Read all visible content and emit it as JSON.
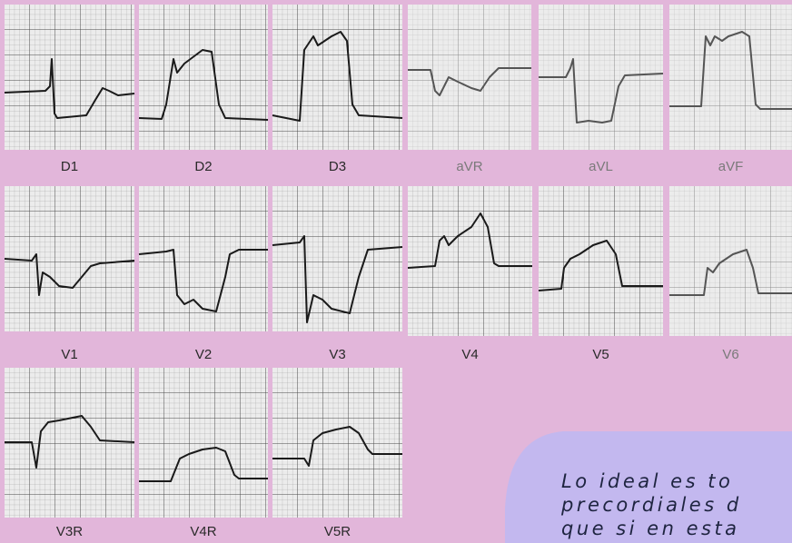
{
  "leads": [
    "D1",
    "D2",
    "D3",
    "aVR",
    "aVL",
    "aVF",
    "V1",
    "V2",
    "V3",
    "V4",
    "V5",
    "V6",
    "V3R",
    "V4R",
    "V5R"
  ],
  "note": {
    "lines": [
      "Lo ideal es to",
      "precordiales d",
      "que si en esta"
    ]
  }
}
